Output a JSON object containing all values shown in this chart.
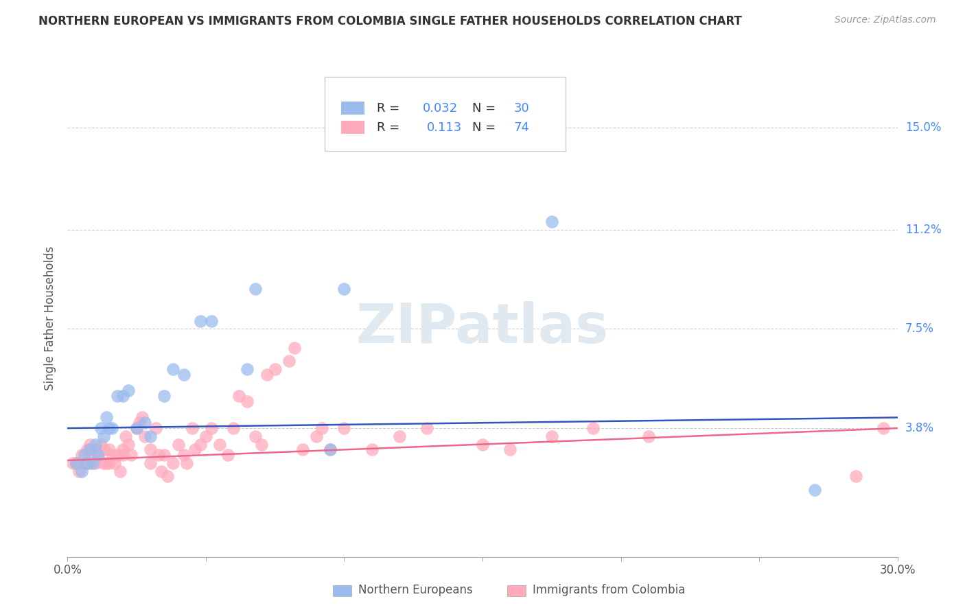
{
  "title": "NORTHERN EUROPEAN VS IMMIGRANTS FROM COLOMBIA SINGLE FATHER HOUSEHOLDS CORRELATION CHART",
  "source": "Source: ZipAtlas.com",
  "ylabel": "Single Father Households",
  "ytick_labels": [
    "15.0%",
    "11.2%",
    "7.5%",
    "3.8%"
  ],
  "ytick_values": [
    0.15,
    0.112,
    0.075,
    0.038
  ],
  "xlim": [
    0.0,
    0.3
  ],
  "ylim": [
    -0.01,
    0.168
  ],
  "blue_R": "0.032",
  "blue_N": "30",
  "pink_R": "0.113",
  "pink_N": "74",
  "blue_color": "#99BBEE",
  "pink_color": "#FFAABB",
  "blue_line_color": "#3355BB",
  "pink_line_color": "#EE6688",
  "watermark": "ZIPatlas",
  "legend_label_blue": "Northern Europeans",
  "legend_label_pink": "Immigrants from Colombia",
  "blue_line_start_y": 0.038,
  "blue_line_end_y": 0.042,
  "pink_line_start_y": 0.026,
  "pink_line_end_y": 0.038,
  "blue_points_x": [
    0.003,
    0.005,
    0.006,
    0.007,
    0.008,
    0.009,
    0.01,
    0.011,
    0.012,
    0.013,
    0.014,
    0.015,
    0.016,
    0.018,
    0.02,
    0.022,
    0.025,
    0.028,
    0.03,
    0.035,
    0.038,
    0.042,
    0.048,
    0.052,
    0.065,
    0.068,
    0.095,
    0.1,
    0.175,
    0.27
  ],
  "blue_points_y": [
    0.025,
    0.022,
    0.028,
    0.025,
    0.03,
    0.025,
    0.032,
    0.028,
    0.038,
    0.035,
    0.042,
    0.038,
    0.038,
    0.05,
    0.05,
    0.052,
    0.038,
    0.04,
    0.035,
    0.05,
    0.06,
    0.058,
    0.078,
    0.078,
    0.06,
    0.09,
    0.03,
    0.09,
    0.115,
    0.015
  ],
  "pink_points_x": [
    0.002,
    0.003,
    0.004,
    0.005,
    0.006,
    0.007,
    0.007,
    0.008,
    0.008,
    0.009,
    0.01,
    0.01,
    0.011,
    0.012,
    0.013,
    0.013,
    0.014,
    0.015,
    0.015,
    0.016,
    0.017,
    0.018,
    0.019,
    0.02,
    0.02,
    0.021,
    0.022,
    0.023,
    0.025,
    0.026,
    0.027,
    0.028,
    0.03,
    0.03,
    0.032,
    0.033,
    0.034,
    0.035,
    0.036,
    0.038,
    0.04,
    0.042,
    0.043,
    0.045,
    0.046,
    0.048,
    0.05,
    0.052,
    0.055,
    0.058,
    0.06,
    0.062,
    0.065,
    0.068,
    0.07,
    0.072,
    0.075,
    0.08,
    0.082,
    0.085,
    0.09,
    0.092,
    0.095,
    0.1,
    0.11,
    0.12,
    0.13,
    0.15,
    0.16,
    0.175,
    0.19,
    0.21,
    0.285,
    0.295
  ],
  "pink_points_y": [
    0.025,
    0.025,
    0.022,
    0.028,
    0.025,
    0.03,
    0.025,
    0.032,
    0.025,
    0.028,
    0.025,
    0.03,
    0.028,
    0.032,
    0.025,
    0.03,
    0.025,
    0.03,
    0.025,
    0.028,
    0.025,
    0.028,
    0.022,
    0.03,
    0.028,
    0.035,
    0.032,
    0.028,
    0.038,
    0.04,
    0.042,
    0.035,
    0.03,
    0.025,
    0.038,
    0.028,
    0.022,
    0.028,
    0.02,
    0.025,
    0.032,
    0.028,
    0.025,
    0.038,
    0.03,
    0.032,
    0.035,
    0.038,
    0.032,
    0.028,
    0.038,
    0.05,
    0.048,
    0.035,
    0.032,
    0.058,
    0.06,
    0.063,
    0.068,
    0.03,
    0.035,
    0.038,
    0.03,
    0.038,
    0.03,
    0.035,
    0.038,
    0.032,
    0.03,
    0.035,
    0.038,
    0.035,
    0.02,
    0.038
  ]
}
